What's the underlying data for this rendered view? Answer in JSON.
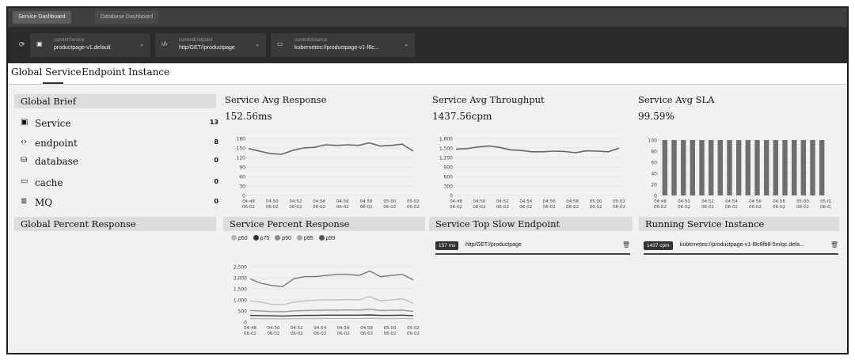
{
  "dashboard_tabs": [
    {
      "label": "Service Dashboard",
      "active": true
    },
    {
      "label": "Database Dashboard",
      "active": false
    }
  ],
  "selectors": {
    "refresh_icon": "refresh-icon",
    "service": {
      "label": "currentService",
      "value": "productpage-v1.default",
      "icon": "server-icon"
    },
    "endpoint": {
      "label": "currentEndpoint",
      "value": "http/GET//productpage",
      "icon": "code-icon"
    },
    "instance": {
      "label": "currentInstance",
      "value": "kubernetes://productpage-v1-f8c...",
      "icon": "monitor-icon"
    }
  },
  "sub_tabs": [
    "Global Service",
    "Endpoint",
    "Instance"
  ],
  "global_brief": {
    "title": "Global Brief",
    "items": [
      {
        "label": "Service",
        "count": "13",
        "icon": "server-icon"
      },
      {
        "label": "endpoint",
        "count": "8",
        "icon": "code-icon"
      },
      {
        "label": "database",
        "count": "0",
        "icon": "database-icon"
      },
      {
        "label": "cache",
        "count": "0",
        "icon": "cache-icon"
      },
      {
        "label": "MQ",
        "count": "0",
        "icon": "queue-icon"
      }
    ]
  },
  "time_labels": [
    "04:48\n06-02",
    "04:50\n06-02",
    "04:52\n06-02",
    "04:54\n06-02",
    "04:56\n06-02",
    "04:58\n06-02",
    "05:00\n06-02",
    "05:02\n06-02"
  ],
  "avg_response": {
    "title": "Service Avg Response",
    "value": "152.56ms",
    "y_ticks": [
      "180",
      "150",
      "120",
      "90",
      "60",
      "30",
      "0"
    ],
    "chart_data": {
      "type": "line",
      "ylim": [
        0,
        180
      ],
      "x": [
        "04:48",
        "04:49",
        "04:50",
        "04:51",
        "04:52",
        "04:53",
        "04:54",
        "04:55",
        "04:56",
        "04:57",
        "04:58",
        "04:59",
        "05:00",
        "05:01",
        "05:02",
        "05:03"
      ],
      "values": [
        148,
        140,
        132,
        130,
        142,
        150,
        152,
        160,
        158,
        160,
        158,
        166,
        156,
        158,
        162,
        140
      ]
    }
  },
  "avg_throughput": {
    "title": "Service Avg Throughput",
    "value": "1437.56cpm",
    "y_ticks": [
      "1,800",
      "1,500",
      "1,200",
      "900",
      "600",
      "300",
      "0"
    ],
    "chart_data": {
      "type": "line",
      "ylim": [
        0,
        1800
      ],
      "x": [
        "04:48",
        "04:49",
        "04:50",
        "04:51",
        "04:52",
        "04:53",
        "04:54",
        "04:55",
        "04:56",
        "04:57",
        "04:58",
        "04:59",
        "05:00",
        "05:01",
        "05:02",
        "05:03"
      ],
      "values": [
        1460,
        1480,
        1530,
        1560,
        1520,
        1440,
        1420,
        1380,
        1380,
        1400,
        1390,
        1350,
        1410,
        1400,
        1380,
        1490
      ]
    }
  },
  "avg_sla": {
    "title": "Service Avg SLA",
    "value": "99.59%",
    "y_ticks": [
      "100",
      "80",
      "60",
      "40",
      "20",
      "0"
    ],
    "chart_data": {
      "type": "bar",
      "ylim": [
        0,
        100
      ],
      "values": [
        100,
        100,
        100,
        100,
        100,
        100,
        100,
        100,
        100,
        100,
        100,
        100,
        100,
        100,
        100,
        100,
        100,
        100
      ]
    }
  },
  "global_percent": {
    "title": "Global Percent Response"
  },
  "percent_response": {
    "title": "Service Percent Response",
    "legend": [
      {
        "name": "p50",
        "color": "#b5b5b5"
      },
      {
        "name": "p75",
        "color": "#333333"
      },
      {
        "name": "p90",
        "color": "#8a8a8a"
      },
      {
        "name": "p95",
        "color": "#a8a8a8"
      },
      {
        "name": "p99",
        "color": "#555555"
      }
    ],
    "y_ticks": [
      "2,500",
      "2,000",
      "1,500",
      "1,000",
      "500",
      "0"
    ],
    "chart_data": {
      "type": "line",
      "ylim": [
        0,
        2500
      ],
      "x": [
        "04:48",
        "04:49",
        "04:50",
        "04:51",
        "04:52",
        "04:53",
        "04:54",
        "04:55",
        "04:56",
        "04:57",
        "04:58",
        "04:59",
        "05:00",
        "05:01",
        "05:02",
        "05:03"
      ],
      "series": [
        {
          "name": "p99",
          "color": "#777777",
          "values": [
            1950,
            1750,
            1650,
            1600,
            1950,
            2050,
            2050,
            2100,
            2150,
            2150,
            2100,
            2300,
            2050,
            2100,
            2150,
            1900
          ]
        },
        {
          "name": "p95",
          "color": "#c0c0c0",
          "values": [
            950,
            900,
            800,
            780,
            900,
            950,
            980,
            1000,
            1000,
            1020,
            1000,
            1150,
            950,
            1000,
            1050,
            850
          ]
        },
        {
          "name": "p90",
          "color": "#9a9a9a",
          "values": [
            520,
            500,
            470,
            460,
            500,
            520,
            530,
            540,
            540,
            550,
            540,
            580,
            520,
            530,
            540,
            480
          ]
        },
        {
          "name": "p75",
          "color": "#333333",
          "values": [
            300,
            290,
            280,
            270,
            290,
            300,
            300,
            310,
            310,
            310,
            310,
            320,
            300,
            300,
            310,
            290
          ]
        },
        {
          "name": "p50",
          "color": "#bbbbbb",
          "values": [
            160,
            155,
            150,
            150,
            155,
            160,
            160,
            165,
            165,
            165,
            165,
            170,
            160,
            160,
            165,
            155
          ]
        }
      ]
    }
  },
  "top_slow": {
    "title": "Service Top Slow Endpoint",
    "items": [
      {
        "badge": "157 ms",
        "text": "http/GET//productpage"
      }
    ]
  },
  "running_instance": {
    "title": "Running Service Instance",
    "items": [
      {
        "badge": "1437 cpm",
        "text": "kubernetes://productpage-v1-f8c8fb8-5mlqc.defa..."
      }
    ]
  }
}
